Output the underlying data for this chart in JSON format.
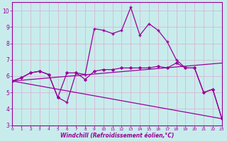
{
  "xlabel": "Windchill (Refroidissement éolien,°C)",
  "bg_color": "#c8ecec",
  "grid_color": "#d4b8d4",
  "line_color": "#990099",
  "x_values": [
    0,
    1,
    2,
    3,
    4,
    5,
    6,
    7,
    8,
    9,
    10,
    11,
    12,
    13,
    14,
    15,
    16,
    17,
    18,
    19,
    20,
    21,
    22,
    23
  ],
  "series_spiky": [
    5.7,
    5.9,
    6.2,
    6.3,
    6.1,
    4.7,
    4.4,
    6.2,
    6.1,
    8.9,
    8.8,
    8.6,
    8.8,
    10.2,
    8.5,
    9.2,
    8.8,
    8.1,
    7.0,
    6.5,
    6.5,
    5.0,
    5.2,
    3.4
  ],
  "series_smooth": [
    5.7,
    5.9,
    6.2,
    6.3,
    6.1,
    4.7,
    6.2,
    6.2,
    5.8,
    6.3,
    6.4,
    6.4,
    6.5,
    6.5,
    6.5,
    6.5,
    6.6,
    6.5,
    6.8,
    6.5,
    6.5,
    5.0,
    5.2,
    3.4
  ],
  "trend1_x": [
    0,
    23
  ],
  "trend1_y": [
    5.7,
    3.4
  ],
  "trend2_x": [
    0,
    23
  ],
  "trend2_y": [
    5.7,
    6.8
  ],
  "ylim_min": 3.0,
  "ylim_max": 10.5,
  "xlim_min": 0,
  "xlim_max": 23,
  "yticks": [
    3,
    4,
    5,
    6,
    7,
    8,
    9,
    10
  ],
  "xticks": [
    0,
    1,
    2,
    3,
    4,
    5,
    6,
    7,
    8,
    9,
    10,
    11,
    12,
    13,
    14,
    15,
    16,
    17,
    18,
    19,
    20,
    21,
    22,
    23
  ],
  "xlabel_fontsize": 5.5,
  "tick_fontsize_x": 4.2,
  "tick_fontsize_y": 5.5,
  "spine_color": "#990099"
}
